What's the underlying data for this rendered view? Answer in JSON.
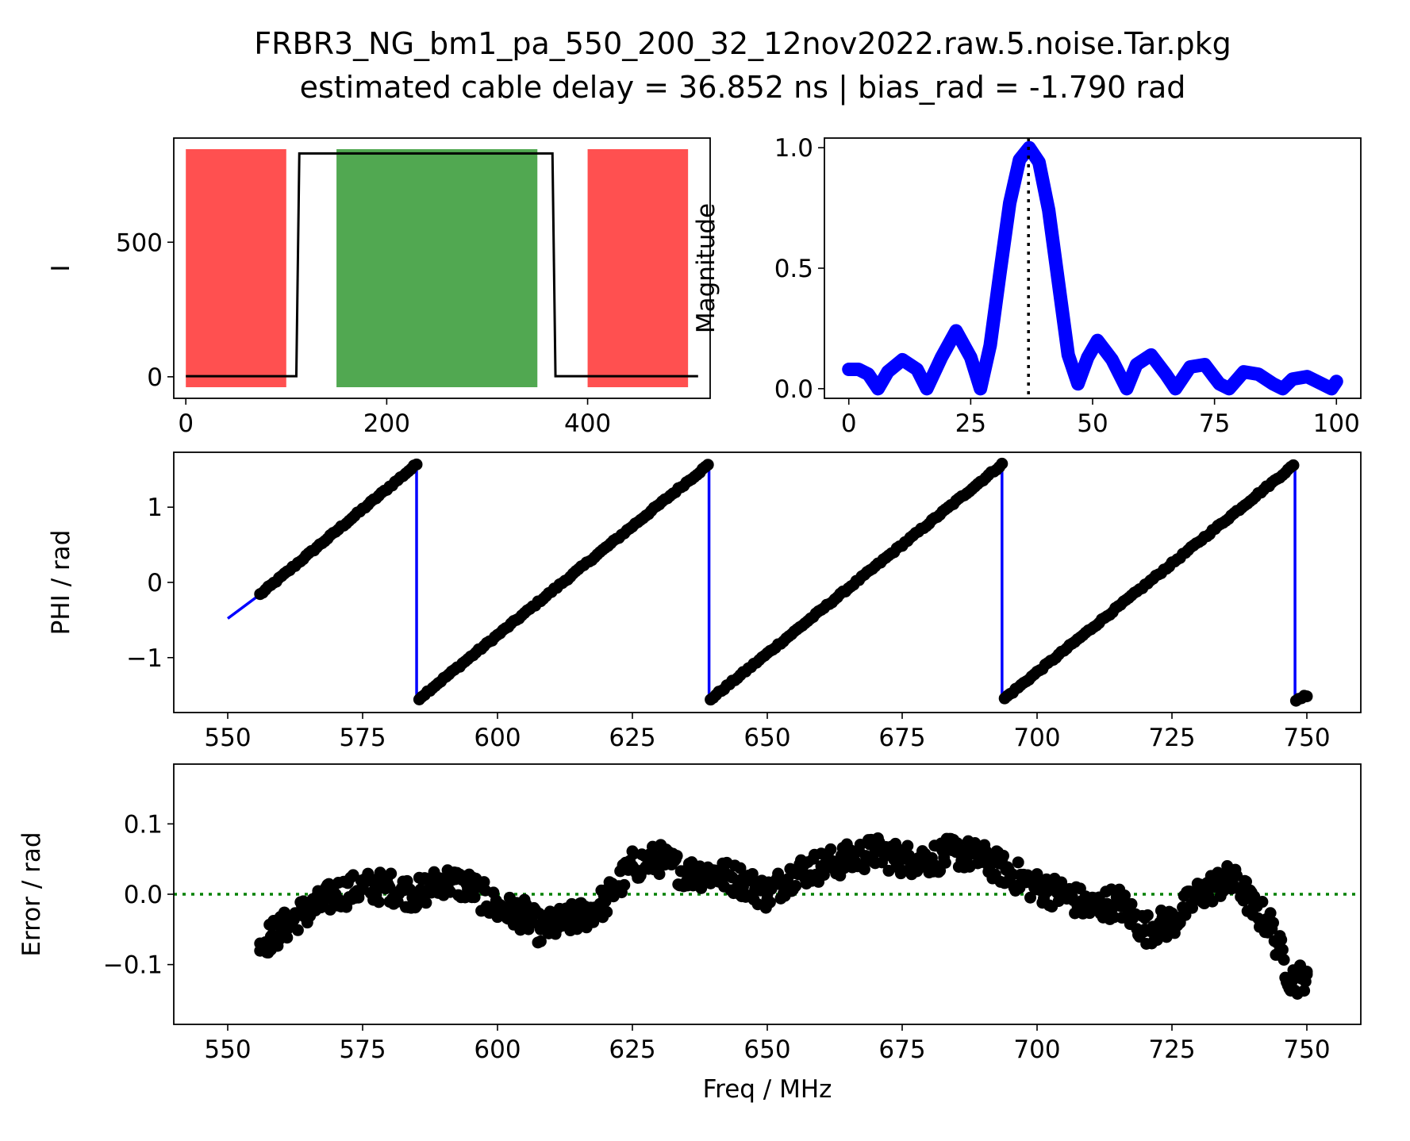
{
  "figure": {
    "title_line1": "FRBR3_NG_bm1_pa_550_200_32_12nov2022.raw.5.noise.Tar.pkg",
    "title_line2": "estimated cable delay = 36.852 ns | bias_rad = -1.790 rad"
  },
  "colors": {
    "red_band": "#ff4d4d",
    "green_band": "#4ea64e",
    "magnitude": "#0000ff",
    "phase_line": "#0000ff",
    "points": "#000000",
    "zero_line": "#008000"
  },
  "chart_data": [
    {
      "id": "i_trace",
      "type": "line",
      "title": "",
      "xlabel": "",
      "ylabel": "I",
      "xlim": [
        -12,
        522
      ],
      "ylim": [
        -80,
        887
      ],
      "xticks": [
        0,
        200,
        400
      ],
      "yticks": [
        0,
        500
      ],
      "x": [
        0,
        110,
        113,
        365,
        368,
        510
      ],
      "y": [
        2,
        2,
        830,
        830,
        2,
        2
      ],
      "bands": [
        {
          "x0": 0,
          "x1": 100,
          "color": "red"
        },
        {
          "x0": 150,
          "x1": 350,
          "color": "green"
        },
        {
          "x0": 400,
          "x1": 500,
          "color": "red"
        }
      ]
    },
    {
      "id": "delay_spectrum",
      "type": "line",
      "title": "",
      "xlabel": "",
      "ylabel": "Magnitude",
      "xlim": [
        -5,
        105
      ],
      "ylim": [
        -0.04,
        1.04
      ],
      "xticks": [
        0,
        25,
        50,
        75,
        100
      ],
      "yticks": [
        0.0,
        0.5,
        1.0
      ],
      "peak_x": 36.852,
      "x": [
        0,
        2,
        4,
        6,
        8,
        11,
        14,
        16,
        19,
        22,
        25,
        27,
        29,
        31,
        33,
        35,
        37,
        39,
        41,
        43,
        45,
        47,
        49,
        51,
        54,
        57,
        59,
        62,
        65,
        67,
        70,
        73,
        76,
        78,
        81,
        84,
        87,
        89,
        91,
        94,
        97,
        99,
        100
      ],
      "y": [
        0.08,
        0.08,
        0.06,
        0.0,
        0.07,
        0.12,
        0.08,
        0.0,
        0.13,
        0.24,
        0.13,
        0.0,
        0.18,
        0.48,
        0.77,
        0.95,
        1.0,
        0.94,
        0.74,
        0.44,
        0.14,
        0.02,
        0.13,
        0.2,
        0.12,
        0.0,
        0.1,
        0.14,
        0.06,
        0.0,
        0.09,
        0.1,
        0.02,
        0.0,
        0.07,
        0.06,
        0.02,
        0.0,
        0.04,
        0.05,
        0.02,
        0.0,
        0.03
      ]
    },
    {
      "id": "phase",
      "type": "line",
      "title": "",
      "xlabel": "",
      "ylabel": "PHI / rad",
      "xlim": [
        540,
        760
      ],
      "ylim": [
        -1.73,
        1.73
      ],
      "xticks": [
        550,
        575,
        600,
        625,
        650,
        675,
        700,
        725,
        750
      ],
      "yticks": [
        -1,
        0,
        1
      ],
      "period_mhz": 54.26,
      "wrap_start_mhz": 556,
      "x": [
        550,
        556,
        585,
        585.01,
        639.2,
        639.21,
        693.5,
        693.51,
        747.8,
        747.81,
        750
      ],
      "y": [
        -0.48,
        -0.16,
        1.57,
        -1.57,
        1.57,
        -1.57,
        1.57,
        -1.57,
        1.57,
        -1.57,
        -1.5
      ]
    },
    {
      "id": "error",
      "type": "scatter",
      "title": "",
      "xlabel": "Freq / MHz",
      "ylabel": "Error / rad",
      "xlim": [
        540,
        760
      ],
      "ylim": [
        -0.185,
        0.185
      ],
      "xticks": [
        550,
        575,
        600,
        625,
        650,
        675,
        700,
        725,
        750
      ],
      "yticks": [
        -0.1,
        0.0,
        0.1
      ],
      "reference_y": 0.0,
      "x": [
        556,
        558,
        560,
        563,
        566,
        570,
        575,
        580,
        585,
        590,
        595,
        600,
        605,
        608,
        612,
        616,
        620,
        625,
        630,
        635,
        640,
        645,
        650,
        655,
        660,
        665,
        670,
        675,
        680,
        685,
        690,
        695,
        700,
        705,
        710,
        715,
        720,
        725,
        730,
        735,
        738,
        740,
        743,
        745,
        747,
        749,
        750
      ],
      "y": [
        -0.07,
        -0.06,
        -0.05,
        -0.03,
        -0.02,
        0.0,
        0.01,
        0.01,
        0.0,
        0.02,
        0.01,
        -0.02,
        -0.03,
        -0.05,
        -0.04,
        -0.03,
        -0.01,
        0.04,
        0.05,
        0.03,
        0.03,
        0.02,
        0.0,
        0.03,
        0.04,
        0.05,
        0.06,
        0.05,
        0.05,
        0.06,
        0.05,
        0.03,
        0.01,
        0.0,
        -0.02,
        -0.01,
        -0.05,
        -0.04,
        0.0,
        0.02,
        0.01,
        -0.02,
        -0.04,
        -0.08,
        -0.12,
        -0.12,
        -0.11
      ]
    }
  ]
}
